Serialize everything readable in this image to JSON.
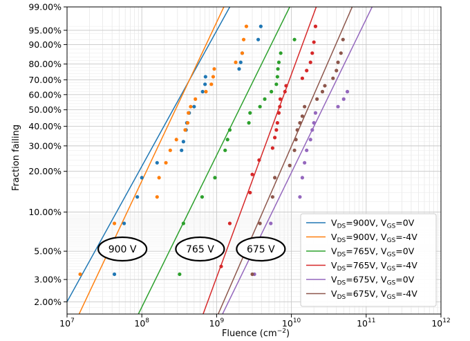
{
  "chart_data": {
    "type": "scatter",
    "title": "",
    "xlabel": "Fluence (cm",
    "xlabel_sup": "−2",
    "xlabel_close": ")",
    "ylabel": "Fraction failing",
    "x_scale": "log",
    "y_scale": "weibull",
    "xlim": [
      10000000.0,
      1000000000000.0
    ],
    "ylim": [
      0.016,
      0.99
    ],
    "grid": true,
    "legend_position": "bottom-right",
    "x_ticks": [
      {
        "value": 10000000.0,
        "base": "10",
        "exp": "7"
      },
      {
        "value": 100000000.0,
        "base": "10",
        "exp": "8"
      },
      {
        "value": 1000000000.0,
        "base": "10",
        "exp": "9"
      },
      {
        "value": 10000000000.0,
        "base": "10",
        "exp": "10"
      },
      {
        "value": 100000000000.0,
        "base": "10",
        "exp": "11"
      },
      {
        "value": 1000000000000.0,
        "base": "10",
        "exp": "12"
      }
    ],
    "y_ticks": [
      {
        "value": 0.02,
        "label": "2.00%"
      },
      {
        "value": 0.03,
        "label": "3.00%"
      },
      {
        "value": 0.05,
        "label": "5.00%"
      },
      {
        "value": 0.1,
        "label": "10.00%"
      },
      {
        "value": 0.2,
        "label": "20.00%"
      },
      {
        "value": 0.3,
        "label": "30.00%"
      },
      {
        "value": 0.4,
        "label": "40.00%"
      },
      {
        "value": 0.5,
        "label": "50.00%"
      },
      {
        "value": 0.6,
        "label": "60.00%"
      },
      {
        "value": 0.7,
        "label": "70.00%"
      },
      {
        "value": 0.8,
        "label": "80.00%"
      },
      {
        "value": 0.9,
        "label": "90.00%"
      },
      {
        "value": 0.95,
        "label": "95.00%"
      },
      {
        "value": 0.99,
        "label": "99.00%"
      }
    ],
    "series": [
      {
        "name": "V_DS=900V, V_GS=0V",
        "vds": "900V",
        "vgs": "0V",
        "color": "#1f77b4",
        "fit": {
          "x1": 10000000.0,
          "y1": 0.02,
          "x2": 1500000000.0,
          "y2": 0.99
        },
        "points": [
          [
            43000000.0,
            0.033
          ],
          [
            58000000.0,
            0.082
          ],
          [
            87000000.0,
            0.13
          ],
          [
            100000000.0,
            0.18
          ],
          [
            160000000.0,
            0.23
          ],
          [
            340000000.0,
            0.28
          ],
          [
            360000000.0,
            0.32
          ],
          [
            390000000.0,
            0.38
          ],
          [
            400000000.0,
            0.42
          ],
          [
            430000000.0,
            0.48
          ],
          [
            500000000.0,
            0.52
          ],
          [
            650000000.0,
            0.62
          ],
          [
            700000000.0,
            0.67
          ],
          [
            710000000.0,
            0.72
          ],
          [
            2000000000.0,
            0.77
          ],
          [
            2100000000.0,
            0.81
          ],
          [
            2200000000.0,
            0.86
          ],
          [
            3600000000.0,
            0.92
          ],
          [
            3900000000.0,
            0.96
          ]
        ]
      },
      {
        "name": "V_DS=900V, V_GS=-4V",
        "vds": "900V",
        "vgs": "-4V",
        "color": "#ff7f0e",
        "fit": {
          "x1": 14500000.0,
          "y1": 0.016,
          "x2": 1250000000.0,
          "y2": 0.99
        },
        "points": [
          [
            15000000.0,
            0.033
          ],
          [
            43000000.0,
            0.082
          ],
          [
            160000000.0,
            0.13
          ],
          [
            170000000.0,
            0.18
          ],
          [
            210000000.0,
            0.23
          ],
          [
            240000000.0,
            0.28
          ],
          [
            290000000.0,
            0.33
          ],
          [
            380000000.0,
            0.38
          ],
          [
            410000000.0,
            0.42
          ],
          [
            420000000.0,
            0.48
          ],
          [
            450000000.0,
            0.52
          ],
          [
            520000000.0,
            0.57
          ],
          [
            720000000.0,
            0.62
          ],
          [
            850000000.0,
            0.67
          ],
          [
            900000000.0,
            0.72
          ],
          [
            930000000.0,
            0.77
          ],
          [
            1800000000.0,
            0.81
          ],
          [
            2200000000.0,
            0.86
          ],
          [
            2300000000.0,
            0.92
          ],
          [
            2500000000.0,
            0.96
          ]
        ]
      },
      {
        "name": "V_DS=765V, V_GS=0V",
        "vds": "765V",
        "vgs": "0V",
        "color": "#2ca02c",
        "fit": {
          "x1": 90000000.0,
          "y1": 0.016,
          "x2": 9500000000.0,
          "y2": 0.99
        },
        "points": [
          [
            320000000.0,
            0.033
          ],
          [
            360000000.0,
            0.082
          ],
          [
            640000000.0,
            0.13
          ],
          [
            950000000.0,
            0.18
          ],
          [
            1300000000.0,
            0.28
          ],
          [
            1400000000.0,
            0.33
          ],
          [
            1500000000.0,
            0.38
          ],
          [
            2700000000.0,
            0.42
          ],
          [
            2800000000.0,
            0.48
          ],
          [
            3800000000.0,
            0.52
          ],
          [
            4400000000.0,
            0.57
          ],
          [
            5400000000.0,
            0.62
          ],
          [
            6300000000.0,
            0.67
          ],
          [
            6500000000.0,
            0.72
          ],
          [
            6600000000.0,
            0.77
          ],
          [
            6800000000.0,
            0.81
          ],
          [
            7200000000.0,
            0.86
          ],
          [
            11000000000.0,
            0.92
          ]
        ]
      },
      {
        "name": "V_DS=765V, V_GS=-4V",
        "vds": "765V",
        "vgs": "-4V",
        "color": "#d62728",
        "fit": {
          "x1": 660000000.0,
          "y1": 0.016,
          "x2": 21500000000.0,
          "y2": 0.99
        },
        "points": [
          [
            1150000000.0,
            0.038
          ],
          [
            1500000000.0,
            0.082
          ],
          [
            2800000000.0,
            0.14
          ],
          [
            3000000000.0,
            0.19
          ],
          [
            3700000000.0,
            0.24
          ],
          [
            5600000000.0,
            0.29
          ],
          [
            6000000000.0,
            0.34
          ],
          [
            6300000000.0,
            0.38
          ],
          [
            6500000000.0,
            0.42
          ],
          [
            6800000000.0,
            0.48
          ],
          [
            7000000000.0,
            0.52
          ],
          [
            7100000000.0,
            0.57
          ],
          [
            8200000000.0,
            0.62
          ],
          [
            8500000000.0,
            0.66
          ],
          [
            14000000000.0,
            0.71
          ],
          [
            16000000000.0,
            0.76
          ],
          [
            18000000000.0,
            0.81
          ],
          [
            19000000000.0,
            0.86
          ],
          [
            20000000000.0,
            0.91
          ],
          [
            21000000000.0,
            0.96
          ]
        ]
      },
      {
        "name": "V_DS=675V, V_GS=0V",
        "vds": "675V",
        "vgs": "0V",
        "color": "#9467bd",
        "fit": {
          "x1": 1200000000.0,
          "y1": 0.016,
          "x2": 120000000000.0,
          "y2": 0.99
        },
        "points": [
          [
            3200000000.0,
            0.033
          ],
          [
            5300000000.0,
            0.082
          ],
          [
            13000000000.0,
            0.13
          ],
          [
            14000000000.0,
            0.18
          ],
          [
            15000000000.0,
            0.23
          ],
          [
            16000000000.0,
            0.28
          ],
          [
            18000000000.0,
            0.33
          ],
          [
            19000000000.0,
            0.38
          ],
          [
            20000000000.0,
            0.42
          ],
          [
            21000000000.0,
            0.48
          ],
          [
            42000000000.0,
            0.52
          ],
          [
            50000000000.0,
            0.57
          ],
          [
            56000000000.0,
            0.62
          ]
        ]
      },
      {
        "name": "V_DS=675V, V_GS=-4V",
        "vds": "675V",
        "vgs": "-4V",
        "color": "#8c564b",
        "fit": {
          "x1": 1050000000.0,
          "y1": 0.016,
          "x2": 65000000000.0,
          "y2": 0.99
        },
        "points": [
          [
            3000000000.0,
            0.033
          ],
          [
            3800000000.0,
            0.082
          ],
          [
            5600000000.0,
            0.13
          ],
          [
            6000000000.0,
            0.18
          ],
          [
            9500000000.0,
            0.22
          ],
          [
            11000000000.0,
            0.28
          ],
          [
            11500000000.0,
            0.33
          ],
          [
            12000000000.0,
            0.38
          ],
          [
            13000000000.0,
            0.42
          ],
          [
            14000000000.0,
            0.46
          ],
          [
            15000000000.0,
            0.52
          ],
          [
            22000000000.0,
            0.57
          ],
          [
            26000000000.0,
            0.62
          ],
          [
            28000000000.0,
            0.66
          ],
          [
            36000000000.0,
            0.71
          ],
          [
            40000000000.0,
            0.76
          ],
          [
            42000000000.0,
            0.81
          ],
          [
            46000000000.0,
            0.86
          ],
          [
            49000000000.0,
            0.92
          ]
        ]
      }
    ],
    "annotations": [
      {
        "text": "900 V",
        "x": 55000000.0,
        "y": 0.052
      },
      {
        "text": "765 V",
        "x": 600000000.0,
        "y": 0.052
      },
      {
        "text": "675 V",
        "x": 3900000000.0,
        "y": 0.052
      }
    ]
  }
}
